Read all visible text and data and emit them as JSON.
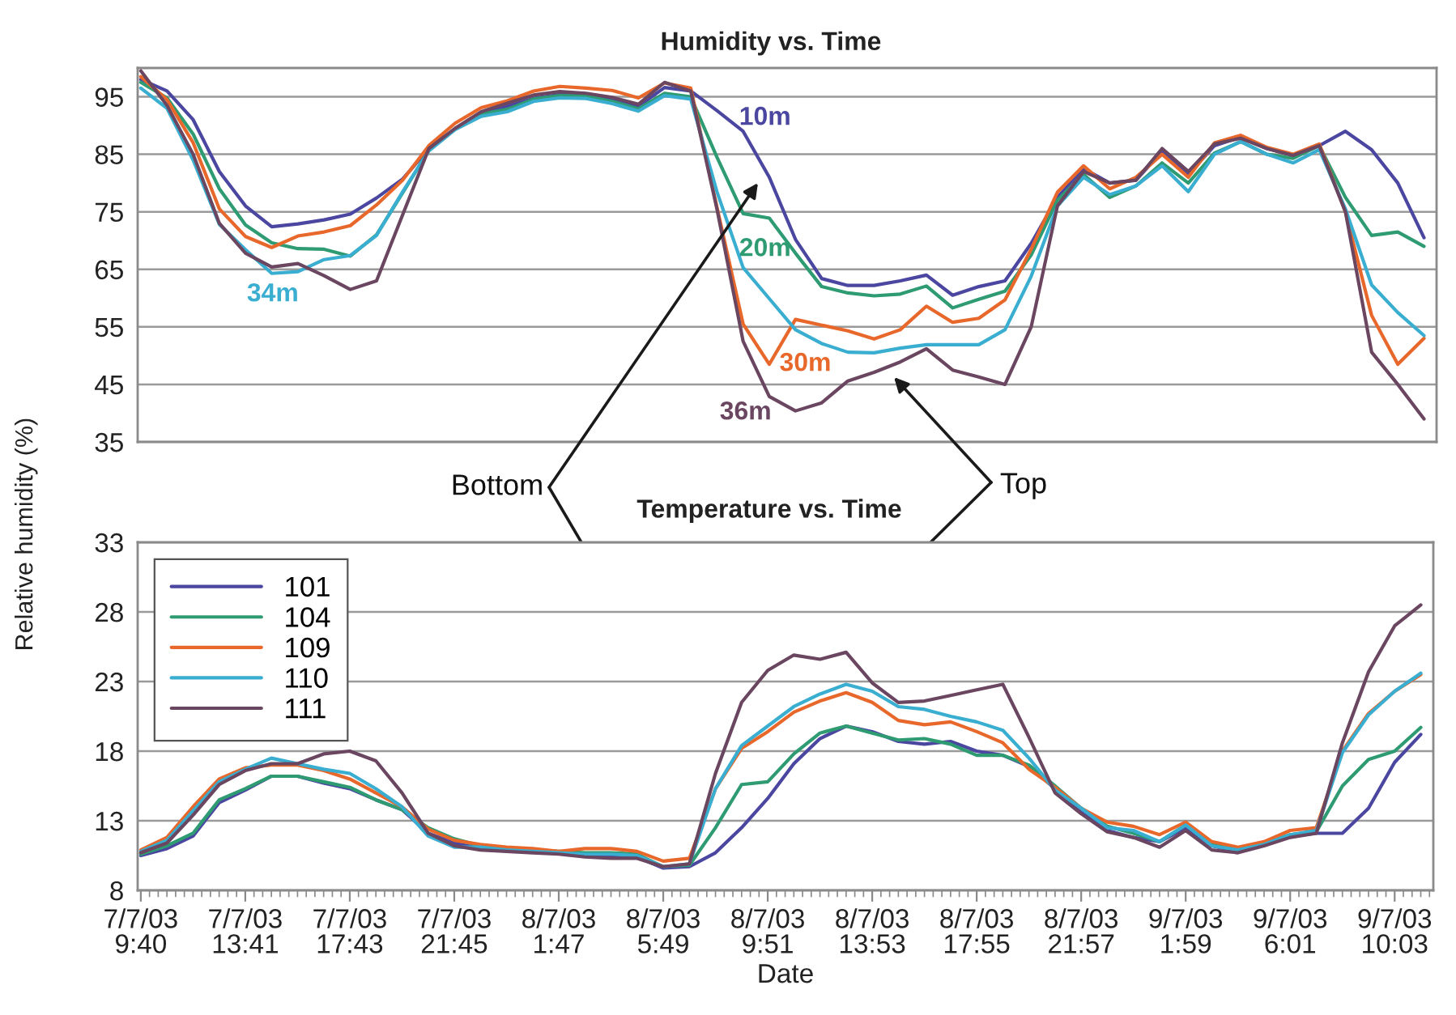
{
  "chart_data": [
    {
      "type": "line",
      "title": "Humidity vs. Time",
      "ylabel": "Relative humidity (%)",
      "categories": [
        null,
        null,
        null,
        null,
        null,
        null,
        null,
        null,
        null,
        null,
        null,
        null,
        null,
        null,
        null,
        null,
        null,
        null,
        null,
        null,
        null,
        null,
        null,
        null,
        null,
        null,
        null,
        null,
        null,
        null,
        null,
        null,
        null,
        null,
        null,
        null,
        null,
        null,
        null,
        null,
        null,
        null,
        null,
        null,
        null,
        null,
        null,
        null,
        null,
        null
      ],
      "ylim": [
        35,
        100
      ],
      "yticks": [
        35,
        45,
        55,
        65,
        75,
        85,
        95
      ],
      "grid": "y",
      "tick_labels": "y",
      "series": [
        {
          "name": "10m",
          "color": "#4b47a0",
          "values": [
            98,
            96,
            91,
            82,
            76,
            72.4,
            72.9,
            73.6,
            74.6,
            77.4,
            80.7,
            86,
            89.4,
            92,
            93.4,
            94.7,
            95.4,
            95.1,
            94.6,
            93.3,
            96.6,
            96,
            92.6,
            89,
            81,
            70.2,
            63.4,
            62.2,
            62.2,
            63,
            64,
            60.5,
            62,
            63,
            69.5,
            77.5,
            82.5,
            80,
            80.5,
            85.5,
            81.5,
            86.5,
            88,
            86,
            84.8,
            86.5,
            89,
            85.8,
            80,
            70.5
          ]
        },
        {
          "name": "20m",
          "color": "#2e9b72",
          "values": [
            97.5,
            94.8,
            88.5,
            79,
            72.7,
            69.6,
            68.6,
            68.5,
            67.3,
            71,
            78.3,
            85.7,
            89.4,
            92,
            92.8,
            94.6,
            95.2,
            95.1,
            94.2,
            92.9,
            95.6,
            95,
            84.5,
            74.7,
            73.9,
            67.8,
            62,
            60.9,
            60.4,
            60.7,
            62.1,
            58.3,
            59.8,
            61.2,
            67.5,
            77,
            81.5,
            77.5,
            79.5,
            83.5,
            80,
            85.2,
            87.2,
            85,
            84.3,
            86.5,
            77.5,
            70.9,
            71.5,
            69
          ]
        },
        {
          "name": "30m",
          "color": "#e8672a",
          "values": [
            98.5,
            94.5,
            87,
            75.5,
            70.7,
            68.8,
            70.8,
            71.5,
            72.6,
            76.2,
            80.5,
            86.5,
            90.4,
            93.1,
            94.3,
            96,
            96.8,
            96.5,
            96.1,
            94.8,
            97.4,
            96.5,
            75.8,
            55.5,
            48.5,
            56.3,
            55.3,
            54.3,
            52.9,
            54.5,
            58.6,
            55.8,
            56.5,
            59.7,
            68.5,
            78.4,
            83,
            79,
            81,
            85,
            81,
            87,
            88.3,
            86.2,
            85,
            86.8,
            75,
            57,
            48.5,
            53
          ]
        },
        {
          "name": "34m",
          "color": "#3aaed0",
          "values": [
            96.5,
            93,
            84,
            72.8,
            68.4,
            64.3,
            64.6,
            66.7,
            67.4,
            70.9,
            78.5,
            85.6,
            89.3,
            91.6,
            92.4,
            94.2,
            94.8,
            94.7,
            93.8,
            92.5,
            95.2,
            94.6,
            78.5,
            65.3,
            59.9,
            54.5,
            52.1,
            50.6,
            50.5,
            51.3,
            51.9,
            51.9,
            51.9,
            54.5,
            63.8,
            76,
            81,
            78,
            79.5,
            83,
            78.5,
            85,
            87.2,
            85,
            83.5,
            85.8,
            75.5,
            62.3,
            57.5,
            53.5
          ]
        },
        {
          "name": "36m",
          "color": "#6a4660",
          "values": [
            99.5,
            93.5,
            85,
            73,
            67.8,
            65.4,
            66,
            63.9,
            61.5,
            63,
            74.5,
            86,
            89.5,
            92.4,
            93.9,
            95.3,
            95.9,
            95.6,
            94.9,
            93.7,
            97.5,
            96,
            75.5,
            52.5,
            42.9,
            40.4,
            41.8,
            45.6,
            47.1,
            48.9,
            51.2,
            47.5,
            46.3,
            45,
            55,
            76,
            82,
            80,
            80.5,
            86,
            82,
            86.8,
            87.8,
            86,
            84.8,
            86.5,
            75,
            50.6,
            45,
            39
          ]
        }
      ],
      "annotations": [
        "Bottom",
        "Top"
      ]
    },
    {
      "type": "line",
      "title": "Temperature vs. Time",
      "xlabel": "Date",
      "categories": [
        "7/7/03\n9:40",
        null,
        null,
        null,
        "7/7/03\n13:41",
        null,
        null,
        null,
        "7/7/03\n17:43",
        null,
        null,
        null,
        "7/7/03\n21:45",
        null,
        null,
        null,
        "8/7/03\n1:47",
        null,
        null,
        null,
        "8/7/03\n5:49",
        null,
        null,
        null,
        "8/7/03\n9:51",
        null,
        null,
        null,
        "8/7/03\n13:53",
        null,
        null,
        null,
        "8/7/03\n17:55",
        null,
        null,
        null,
        "8/7/03\n21:57",
        null,
        null,
        null,
        "9/7/03\n1:59",
        null,
        null,
        null,
        "9/7/03\n6:01",
        null,
        null,
        null,
        "9/7/03\n10:03",
        null
      ],
      "ylim": [
        8,
        33
      ],
      "yticks": [
        8,
        13,
        18,
        23,
        28,
        33
      ],
      "grid": "y",
      "legend": "top left",
      "series": [
        {
          "name": "101",
          "color": "#4b47a0",
          "values": [
            10.5,
            11,
            11.9,
            14.3,
            15.2,
            16.2,
            16.2,
            15.7,
            15.3,
            14.5,
            13.8,
            12.1,
            11.4,
            11,
            10.9,
            10.8,
            10.7,
            10.5,
            10.4,
            10.4,
            9.6,
            9.7,
            10.7,
            12.5,
            14.6,
            17.1,
            18.9,
            19.8,
            19.4,
            18.7,
            18.5,
            18.7,
            18,
            17.7,
            16.9,
            15.3,
            13.6,
            12.3,
            11.8,
            11.5,
            12.5,
            11.2,
            10.8,
            11.3,
            11.9,
            12.1,
            12.1,
            13.9,
            17.2,
            19.2
          ]
        },
        {
          "name": "104",
          "color": "#2e9b72",
          "values": [
            10.6,
            11.2,
            12.1,
            14.5,
            15.3,
            16.2,
            16.2,
            15.8,
            15.4,
            14.5,
            13.8,
            12.5,
            11.7,
            11.2,
            11,
            10.9,
            10.8,
            10.7,
            10.7,
            10.6,
            9.7,
            9.8,
            12.5,
            15.6,
            15.8,
            17.8,
            19.3,
            19.8,
            19.3,
            18.8,
            18.9,
            18.5,
            17.7,
            17.7,
            17,
            15.5,
            13.9,
            12.6,
            12.1,
            11.5,
            12.7,
            11.3,
            11,
            11.4,
            12,
            12.2,
            15.5,
            17.4,
            18,
            19.7
          ]
        },
        {
          "name": "109",
          "color": "#e8672a",
          "values": [
            10.9,
            11.8,
            14,
            16,
            16.8,
            17,
            17,
            16.6,
            16,
            15,
            14,
            12.4,
            11.6,
            11.3,
            11.1,
            11,
            10.8,
            11,
            11,
            10.8,
            10.1,
            10.3,
            15.3,
            18.2,
            19.4,
            20.8,
            21.6,
            22.2,
            21.5,
            20.2,
            19.9,
            20.1,
            19.4,
            18.6,
            16.7,
            15.4,
            13.9,
            12.9,
            12.6,
            12,
            12.9,
            11.5,
            11.1,
            11.5,
            12.3,
            12.5,
            18,
            20.7,
            22.3,
            23.5
          ]
        },
        {
          "name": "110",
          "color": "#3aaed0",
          "values": [
            10.8,
            11.6,
            13.7,
            15.8,
            16.7,
            17.5,
            17.1,
            16.7,
            16.4,
            15.3,
            14,
            11.9,
            11.1,
            11.1,
            10.9,
            10.8,
            10.7,
            10.6,
            10.6,
            10.5,
            9.7,
            9.9,
            15.3,
            18.4,
            19.8,
            21.2,
            22.1,
            22.8,
            22.3,
            21.2,
            21,
            20.5,
            20.1,
            19.5,
            17.5,
            15.2,
            13.9,
            12.5,
            12.3,
            11.5,
            12.7,
            11.2,
            10.9,
            11.3,
            12,
            12.3,
            17.9,
            20.6,
            22.3,
            23.6
          ]
        },
        {
          "name": "111",
          "color": "#6a4660",
          "values": [
            10.7,
            11.4,
            13.4,
            15.6,
            16.6,
            17.1,
            17.1,
            17.8,
            18,
            17.3,
            15,
            12.1,
            11.2,
            10.9,
            10.8,
            10.7,
            10.6,
            10.4,
            10.3,
            10.3,
            9.7,
            9.9,
            16.4,
            21.5,
            23.8,
            24.9,
            24.6,
            25.1,
            22.9,
            21.5,
            21.6,
            22,
            22.4,
            22.8,
            19,
            15,
            13.5,
            12.2,
            11.8,
            11.1,
            12.3,
            10.9,
            10.7,
            11.2,
            11.8,
            12.1,
            18.6,
            23.7,
            27,
            28.5
          ]
        }
      ]
    }
  ]
}
